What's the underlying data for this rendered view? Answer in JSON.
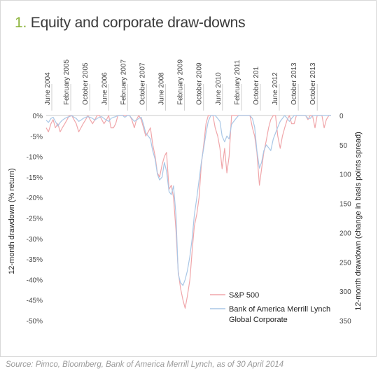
{
  "header": {
    "number": "1.",
    "title": "Equity and corporate draw-downs"
  },
  "source": "Source: Pimco, Bloomberg, Bank of America Merrill Lynch, as of 30 April 2014",
  "chart_data": {
    "type": "line",
    "title": "Equity and corporate draw-downs",
    "x_tick_labels": [
      "June 2004",
      "February 2005",
      "October 2005",
      "June 2006",
      "February 2007",
      "October 2007",
      "June 2008",
      "February 2009",
      "October 2009",
      "June 2010",
      "February 2011",
      "October 201",
      "June 2012",
      "October 2013",
      "October 2013"
    ],
    "y_left": {
      "label": "12-month drawdown (% return)",
      "ticks": [
        "0%",
        "-5%",
        "-10%",
        "-15%",
        "-20%",
        "-25%",
        "-30%",
        "-35%",
        "-40%",
        "-45%",
        "-50%"
      ],
      "range": [
        -50,
        0
      ]
    },
    "y_right": {
      "label": "12-month drawdown (change in basis points spread)",
      "ticks": [
        "0",
        "50",
        "100",
        "150",
        "200",
        "250",
        "300",
        "350"
      ],
      "range": [
        0,
        350
      ],
      "inverted": true
    },
    "legend_position": "bottom-right",
    "grid": false,
    "series": [
      {
        "name": "S&P 500",
        "axis": "left",
        "color": "#f0a6aa",
        "x": [
          2004.0,
          2004.08,
          2004.17,
          2004.25,
          2004.33,
          2004.42,
          2004.5,
          2004.58,
          2004.67,
          2004.75,
          2004.83,
          2004.92,
          2005.0,
          2005.08,
          2005.17,
          2005.25,
          2005.33,
          2005.42,
          2005.5,
          2005.58,
          2005.67,
          2005.75,
          2005.83,
          2005.92,
          2006.0,
          2006.08,
          2006.17,
          2006.25,
          2006.33,
          2006.42,
          2006.5,
          2006.58,
          2006.67,
          2006.75,
          2006.83,
          2006.92,
          2007.0,
          2007.08,
          2007.17,
          2007.25,
          2007.33,
          2007.42,
          2007.5,
          2007.58,
          2007.67,
          2007.75,
          2007.83,
          2007.92,
          2008.0,
          2008.08,
          2008.17,
          2008.25,
          2008.33,
          2008.42,
          2008.5,
          2008.58,
          2008.67,
          2008.75,
          2008.83,
          2008.92,
          2009.0,
          2009.08,
          2009.17,
          2009.25,
          2009.33,
          2009.42,
          2009.5,
          2009.58,
          2009.67,
          2009.75,
          2009.83,
          2009.92,
          2010.0,
          2010.08,
          2010.17,
          2010.25,
          2010.33,
          2010.42,
          2010.5,
          2010.58,
          2010.67,
          2010.75,
          2010.83,
          2010.92,
          2011.0,
          2011.08,
          2011.17,
          2011.25,
          2011.33,
          2011.42,
          2011.5,
          2011.58,
          2011.67,
          2011.75,
          2011.83,
          2011.92,
          2012.0,
          2012.08,
          2012.17,
          2012.25,
          2012.33,
          2012.42,
          2012.5,
          2012.58,
          2012.67,
          2012.75,
          2012.83,
          2012.92,
          2013.0,
          2013.08,
          2013.17,
          2013.25,
          2013.33,
          2013.42,
          2013.5,
          2013.58,
          2013.67,
          2013.75,
          2013.83,
          2013.92,
          2014.0,
          2014.08,
          2014.17,
          2014.25
        ],
        "y": [
          -3,
          -4,
          -2,
          -1,
          -3,
          -2,
          -4,
          -3,
          -2,
          -1,
          0,
          0,
          -1,
          -2,
          -4,
          -3,
          -2,
          -1,
          0,
          -1,
          -2,
          -1,
          0,
          0,
          -1,
          -2,
          -1,
          0,
          -3,
          -3,
          -2,
          0,
          0,
          0,
          0,
          0,
          0,
          -1,
          -3,
          -1,
          0,
          -1,
          -3,
          -5,
          -4,
          -3,
          -7,
          -10,
          -14,
          -15,
          -12,
          -10,
          -9,
          -18,
          -17,
          -20,
          -28,
          -38,
          -42,
          -45,
          -47,
          -44,
          -40,
          -33,
          -27,
          -24,
          -20,
          -12,
          -7,
          -2,
          0,
          0,
          0,
          -3,
          -5,
          -8,
          -13,
          -8,
          -14,
          -10,
          0,
          0,
          0,
          0,
          0,
          0,
          0,
          0,
          0,
          -3,
          -5,
          -9,
          -17,
          -13,
          -9,
          -6,
          -3,
          -1,
          0,
          0,
          -5,
          -8,
          -5,
          -3,
          -1,
          0,
          -2,
          -2,
          0,
          0,
          0,
          0,
          0,
          -1,
          0,
          0,
          -3,
          0,
          0,
          0,
          -3,
          -1,
          0,
          0
        ]
      },
      {
        "name": "Bank of America Merrill Lynch Global Corporate",
        "axis": "right",
        "color": "#a9c7e6",
        "x": [
          2004.0,
          2004.08,
          2004.17,
          2004.25,
          2004.33,
          2004.42,
          2004.5,
          2004.58,
          2004.67,
          2004.75,
          2004.83,
          2004.92,
          2005.0,
          2005.08,
          2005.17,
          2005.25,
          2005.33,
          2005.42,
          2005.5,
          2005.58,
          2005.67,
          2005.75,
          2005.83,
          2005.92,
          2006.0,
          2006.08,
          2006.17,
          2006.25,
          2006.33,
          2006.42,
          2006.5,
          2006.58,
          2006.67,
          2006.75,
          2006.83,
          2006.92,
          2007.0,
          2007.08,
          2007.17,
          2007.25,
          2007.33,
          2007.42,
          2007.5,
          2007.58,
          2007.67,
          2007.75,
          2007.83,
          2007.92,
          2008.0,
          2008.08,
          2008.17,
          2008.25,
          2008.33,
          2008.42,
          2008.5,
          2008.58,
          2008.67,
          2008.75,
          2008.83,
          2008.92,
          2009.0,
          2009.08,
          2009.17,
          2009.25,
          2009.33,
          2009.42,
          2009.5,
          2009.58,
          2009.67,
          2009.75,
          2009.83,
          2009.92,
          2010.0,
          2010.08,
          2010.17,
          2010.25,
          2010.33,
          2010.42,
          2010.5,
          2010.58,
          2010.67,
          2010.75,
          2010.83,
          2010.92,
          2011.0,
          2011.08,
          2011.17,
          2011.25,
          2011.33,
          2011.42,
          2011.5,
          2011.58,
          2011.67,
          2011.75,
          2011.83,
          2011.92,
          2012.0,
          2012.08,
          2012.17,
          2012.25,
          2012.33,
          2012.42,
          2012.5,
          2012.58,
          2012.67,
          2012.75,
          2012.83,
          2012.92,
          2013.0,
          2013.08,
          2013.17,
          2013.25,
          2013.33,
          2013.42,
          2013.5,
          2013.58,
          2013.67,
          2013.75,
          2013.83,
          2013.92,
          2014.0,
          2014.08,
          2014.17,
          2014.25
        ],
        "y": [
          8,
          12,
          5,
          3,
          10,
          18,
          12,
          8,
          5,
          3,
          2,
          0,
          3,
          5,
          10,
          8,
          5,
          3,
          2,
          3,
          5,
          8,
          5,
          3,
          2,
          5,
          8,
          10,
          5,
          3,
          2,
          0,
          0,
          0,
          3,
          0,
          0,
          5,
          10,
          8,
          5,
          3,
          15,
          30,
          35,
          40,
          60,
          75,
          100,
          110,
          105,
          80,
          95,
          130,
          135,
          120,
          170,
          270,
          285,
          290,
          280,
          265,
          240,
          210,
          170,
          140,
          110,
          80,
          55,
          30,
          10,
          0,
          0,
          0,
          5,
          10,
          35,
          45,
          35,
          40,
          15,
          10,
          5,
          0,
          0,
          0,
          0,
          0,
          0,
          5,
          20,
          60,
          90,
          80,
          60,
          50,
          55,
          60,
          40,
          30,
          20,
          10,
          5,
          0,
          5,
          10,
          5,
          0,
          0,
          0,
          0,
          0,
          0,
          5,
          5,
          0,
          0,
          0,
          0,
          0,
          0,
          0,
          0,
          0
        ]
      }
    ]
  }
}
